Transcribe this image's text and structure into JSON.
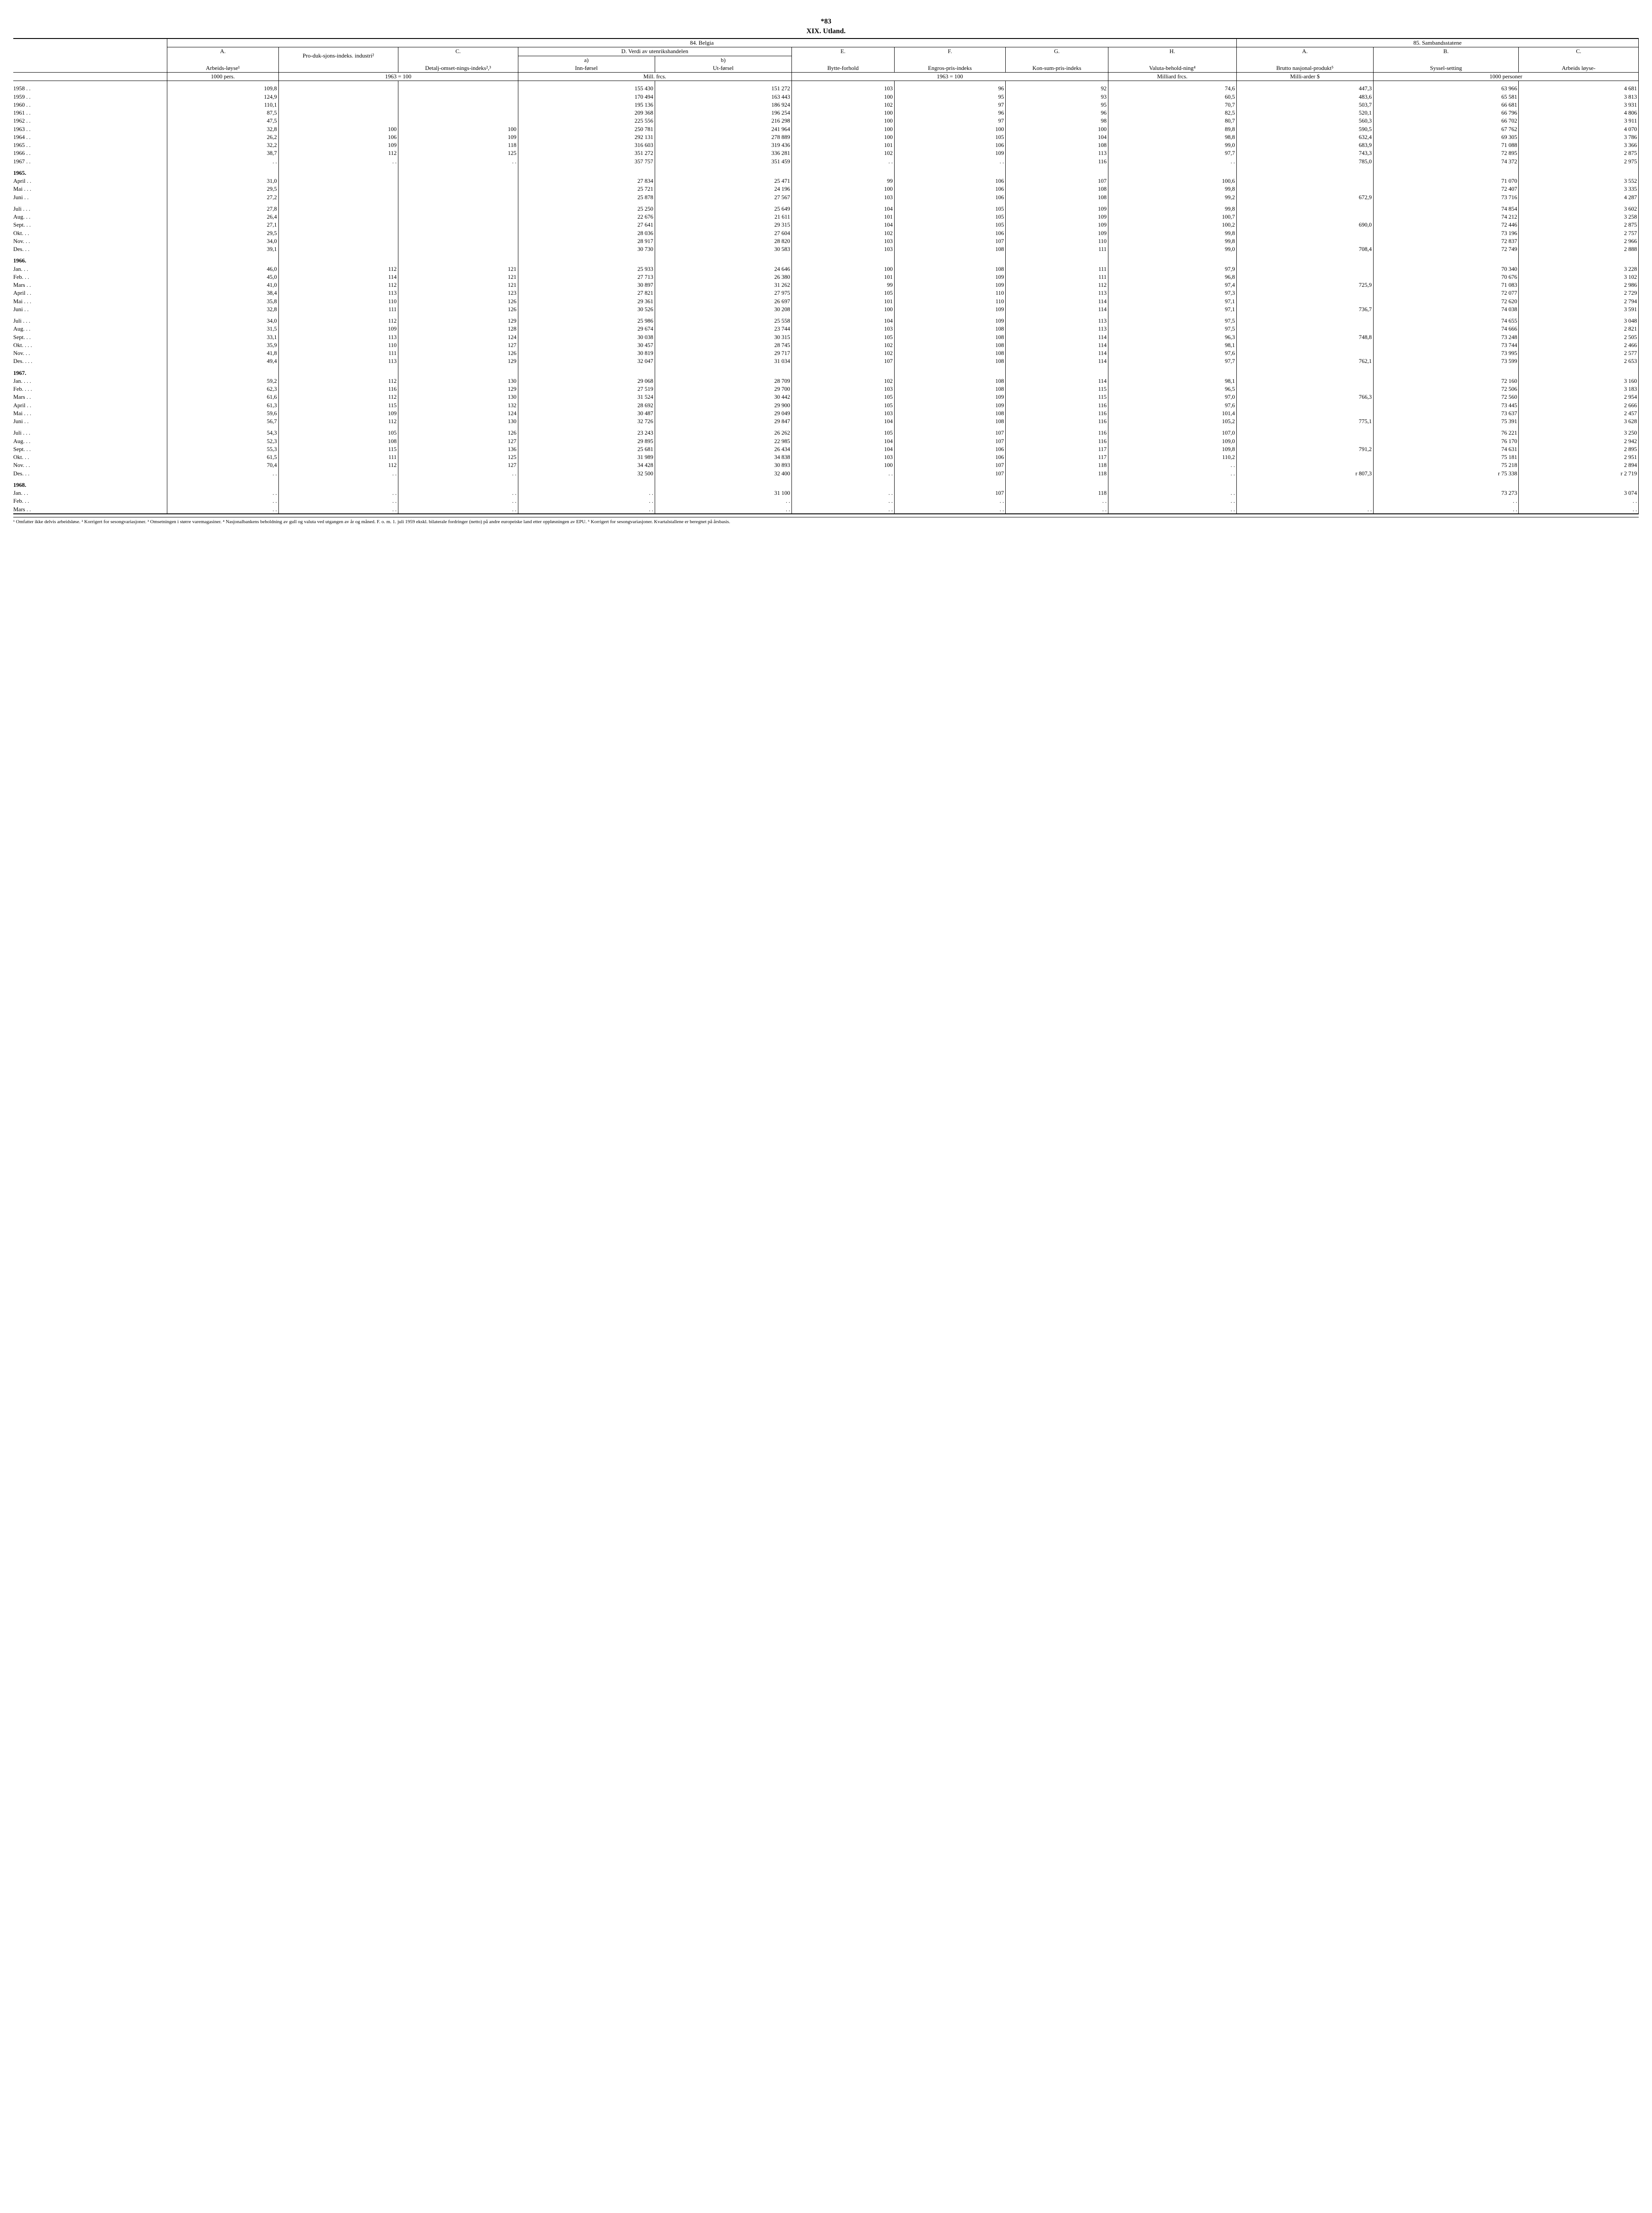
{
  "page_number": "*83",
  "chapter": "XIX.  Utland.",
  "section_belgia": "84.  Belgia",
  "section_samband": "85.  Sambandsstatene",
  "cols": {
    "A": "A.",
    "B": "B.",
    "C": "C.",
    "D": "D.  Verdi av utenrikshandelen",
    "E": "E.",
    "F": "F.",
    "G": "G.",
    "H": "H.",
    "A2": "A.",
    "B2": "B.",
    "C2": "C.",
    "a_sub": "a)",
    "b_sub": "b)"
  },
  "headers": {
    "arbeidsloyse": "Arbeids-løyse¹",
    "produksjon": "Pro-duk-sjons-indeks. industri²",
    "detalj": "Detalj-omset-nings-indeks²,³",
    "innforsel": "Inn-førsel",
    "utforsel": "Ut-førsel",
    "bytte": "Bytte-forhold",
    "engros": "Engros-pris-indeks",
    "konsum": "Kon-sum-pris-indeks",
    "valuta": "Valuta-behold-ning⁴",
    "brutto": "Brutto nasjonal-produkt⁵",
    "syssel": "Syssel-setting",
    "arbeidsloyse2": "Arbeids løyse-"
  },
  "units": {
    "pers": "1000 pers.",
    "idx63": "1963 = 100",
    "millfrcs": "Mill. frcs.",
    "idx63b": "1963 = 100",
    "millifrcs": "Milliard frcs.",
    "milliarder": "Milli-arder $",
    "tusenpers": "1000 personer"
  },
  "rows": [
    {
      "label": "1958  . .",
      "a": "109,8",
      "b": "",
      "c": "",
      "d1": "155 430",
      "d2": "151 272",
      "e": "103",
      "f": "96",
      "g": "92",
      "h": "74,6",
      "a2": "447,3",
      "b2": "63 966",
      "c2": "4 681"
    },
    {
      "label": "1959  . .",
      "a": "124,9",
      "b": "",
      "c": "",
      "d1": "170 494",
      "d2": "163 443",
      "e": "100",
      "f": "95",
      "g": "93",
      "h": "60,5",
      "a2": "483,6",
      "b2": "65 581",
      "c2": "3 813"
    },
    {
      "label": "1960  . .",
      "a": "110,1",
      "b": "",
      "c": "",
      "d1": "195 136",
      "d2": "186 924",
      "e": "102",
      "f": "97",
      "g": "95",
      "h": "70,7",
      "a2": "503,7",
      "b2": "66 681",
      "c2": "3 931"
    },
    {
      "label": "1961  . .",
      "a": "87,5",
      "b": "",
      "c": "",
      "d1": "209 368",
      "d2": "196 254",
      "e": "100",
      "f": "96",
      "g": "96",
      "h": "82,5",
      "a2": "520,1",
      "b2": "66 796",
      "c2": "4 806"
    },
    {
      "label": "1962  . .",
      "a": "47,5",
      "b": "",
      "c": "",
      "d1": "225 556",
      "d2": "216 298",
      "e": "100",
      "f": "97",
      "g": "98",
      "h": "80,7",
      "a2": "560,3",
      "b2": "66 702",
      "c2": "3 911"
    },
    {
      "label": "1963  . .",
      "a": "32,8",
      "b": "100",
      "c": "100",
      "d1": "250 781",
      "d2": "241 964",
      "e": "100",
      "f": "100",
      "g": "100",
      "h": "89,8",
      "a2": "590,5",
      "b2": "67 762",
      "c2": "4 070"
    },
    {
      "label": "1964  . .",
      "a": "26,2",
      "b": "106",
      "c": "109",
      "d1": "292 131",
      "d2": "278 889",
      "e": "100",
      "f": "105",
      "g": "104",
      "h": "98,8",
      "a2": "632,4",
      "b2": "69 305",
      "c2": "3 786"
    },
    {
      "label": "1965  . .",
      "a": "32,2",
      "b": "109",
      "c": "118",
      "d1": "316 603",
      "d2": "319 436",
      "e": "101",
      "f": "106",
      "g": "108",
      "h": "99,0",
      "a2": "683,9",
      "b2": "71 088",
      "c2": "3 366"
    },
    {
      "label": "1966  . .",
      "a": "38,7",
      "b": "112",
      "c": "125",
      "d1": "351 272",
      "d2": "336 281",
      "e": "102",
      "f": "109",
      "g": "113",
      "h": "97,7",
      "a2": "743,3",
      "b2": "72 895",
      "c2": "2 875"
    },
    {
      "label": "1967  . .",
      "a": ". .",
      "b": ". .",
      "c": ". .",
      "d1": "357 757",
      "d2": "351 459",
      "e": ". .",
      "f": ". .",
      "g": "116",
      "h": ". .",
      "a2": "785,0",
      "b2": "74 372",
      "c2": "2 975"
    }
  ],
  "g1965": [
    {
      "label": "April . .",
      "a": "31,0",
      "b": "",
      "c": "",
      "d1": "27 834",
      "d2": "25 471",
      "e": "99",
      "f": "106",
      "g": "107",
      "h": "100,6",
      "a2": "",
      "b2": "71 070",
      "c2": "3 552"
    },
    {
      "label": "Mai  . . .",
      "a": "29,5",
      "b": "",
      "c": "",
      "d1": "25 721",
      "d2": "24 196",
      "e": "100",
      "f": "106",
      "g": "108",
      "h": "99,8",
      "a2": "",
      "b2": "72 407",
      "c2": "3 335"
    },
    {
      "label": "Juni  . .",
      "a": "27,2",
      "b": "",
      "c": "",
      "d1": "25 878",
      "d2": "27 567",
      "e": "103",
      "f": "106",
      "g": "108",
      "h": "99,2",
      "a2": "672,9",
      "b2": "73 716",
      "c2": "4 287"
    },
    {
      "label": "Juli  . . .",
      "a": "27,8",
      "b": "",
      "c": "",
      "d1": "25 250",
      "d2": "25 649",
      "e": "104",
      "f": "105",
      "g": "109",
      "h": "99,8",
      "a2": "",
      "b2": "74 854",
      "c2": "3 602"
    },
    {
      "label": "Aug. . .",
      "a": "26,4",
      "b": "",
      "c": "",
      "d1": "22 676",
      "d2": "21 611",
      "e": "101",
      "f": "105",
      "g": "109",
      "h": "100,7",
      "a2": "",
      "b2": "74 212",
      "c2": "3 258"
    },
    {
      "label": "Sept. . .",
      "a": "27,1",
      "b": "",
      "c": "",
      "d1": "27 641",
      "d2": "29 315",
      "e": "104",
      "f": "105",
      "g": "109",
      "h": "100,2",
      "a2": "690,0",
      "b2": "72 446",
      "c2": "2 875"
    },
    {
      "label": "Okt.  . .",
      "a": "29,5",
      "b": "",
      "c": "",
      "d1": "28 036",
      "d2": "27 604",
      "e": "102",
      "f": "106",
      "g": "109",
      "h": "99,8",
      "a2": "",
      "b2": "73 196",
      "c2": "2 757"
    },
    {
      "label": "Nov. . .",
      "a": "34,0",
      "b": "",
      "c": "",
      "d1": "28 917",
      "d2": "28 820",
      "e": "103",
      "f": "107",
      "g": "110",
      "h": "99,8",
      "a2": "",
      "b2": "72 837",
      "c2": "2 966"
    },
    {
      "label": "Des.  . .",
      "a": "39,1",
      "b": "",
      "c": "",
      "d1": "30 730",
      "d2": "30 583",
      "e": "103",
      "f": "108",
      "g": "111",
      "h": "99,0",
      "a2": "708,4",
      "b2": "72 749",
      "c2": "2 888"
    }
  ],
  "g1966": [
    {
      "label": "Jan.  . .",
      "a": "46,0",
      "b": "112",
      "c": "121",
      "d1": "25 933",
      "d2": "24 646",
      "e": "100",
      "f": "108",
      "g": "111",
      "h": "97,9",
      "a2": "",
      "b2": "70 340",
      "c2": "3 228"
    },
    {
      "label": "Feb.  . .",
      "a": "45,0",
      "b": "114",
      "c": "121",
      "d1": "27 713",
      "d2": "26 380",
      "e": "101",
      "f": "109",
      "g": "111",
      "h": "96,8",
      "a2": "",
      "b2": "70 676",
      "c2": "3 102"
    },
    {
      "label": "Mars . .",
      "a": "41,0",
      "b": "112",
      "c": "121",
      "d1": "30 897",
      "d2": "31 262",
      "e": "99",
      "f": "109",
      "g": "112",
      "h": "97,4",
      "a2": "725,9",
      "b2": "71 083",
      "c2": "2 986"
    },
    {
      "label": "April . .",
      "a": "38,4",
      "b": "113",
      "c": "123",
      "d1": "27 821",
      "d2": "27 975",
      "e": "105",
      "f": "110",
      "g": "113",
      "h": "97,3",
      "a2": "",
      "b2": "72 077",
      "c2": "2 729"
    },
    {
      "label": "Mai  . . .",
      "a": "35,8",
      "b": "110",
      "c": "126",
      "d1": "29 361",
      "d2": "26 697",
      "e": "101",
      "f": "110",
      "g": "114",
      "h": "97,1",
      "a2": "",
      "b2": "72 620",
      "c2": "2 794"
    },
    {
      "label": "Juni  . .",
      "a": "32,8",
      "b": "111",
      "c": "126",
      "d1": "30 526",
      "d2": "30 208",
      "e": "100",
      "f": "109",
      "g": "114",
      "h": "97,1",
      "a2": "736,7",
      "b2": "74 038",
      "c2": "3 591"
    },
    {
      "label": "Juli  . . .",
      "a": "34,0",
      "b": "112",
      "c": "129",
      "d1": "25 986",
      "d2": "25 558",
      "e": "104",
      "f": "109",
      "g": "113",
      "h": "97,5",
      "a2": "",
      "b2": "74 655",
      "c2": "3 048"
    },
    {
      "label": "Aug. . .",
      "a": "31,5",
      "b": "109",
      "c": "128",
      "d1": "29 674",
      "d2": "23 744",
      "e": "103",
      "f": "108",
      "g": "113",
      "h": "97,5",
      "a2": "",
      "b2": "74 666",
      "c2": "2 821"
    },
    {
      "label": "Sept. . .",
      "a": "33,1",
      "b": "113",
      "c": "124",
      "d1": "30 038",
      "d2": "30 315",
      "e": "105",
      "f": "108",
      "g": "114",
      "h": "96,3",
      "a2": "748,8",
      "b2": "73 248",
      "c2": "2 505"
    },
    {
      "label": "Okt. . . .",
      "a": "35,9",
      "b": "110",
      "c": "127",
      "d1": "30 457",
      "d2": "28 745",
      "e": "102",
      "f": "108",
      "g": "114",
      "h": "98,1",
      "a2": "",
      "b2": "73 744",
      "c2": "2 466"
    },
    {
      "label": "Nov. . .",
      "a": "41,8",
      "b": "111",
      "c": "126",
      "d1": "30 819",
      "d2": "29 717",
      "e": "102",
      "f": "108",
      "g": "114",
      "h": "97,6",
      "a2": "",
      "b2": "73 995",
      "c2": "2 577"
    },
    {
      "label": "Des. . . .",
      "a": "49,4",
      "b": "113",
      "c": "129",
      "d1": "32 047",
      "d2": "31 034",
      "e": "107",
      "f": "108",
      "g": "114",
      "h": "97,7",
      "a2": "762,1",
      "b2": "73 599",
      "c2": "2 653"
    }
  ],
  "g1967": [
    {
      "label": "Jan. . . .",
      "a": "59,2",
      "b": "112",
      "c": "130",
      "d1": "29 068",
      "d2": "28 709",
      "e": "102",
      "f": "108",
      "g": "114",
      "h": "98,1",
      "a2": "",
      "b2": "72 160",
      "c2": "3 160"
    },
    {
      "label": "Feb. . . .",
      "a": "62,3",
      "b": "116",
      "c": "129",
      "d1": "27 519",
      "d2": "29 700",
      "e": "103",
      "f": "108",
      "g": "115",
      "h": "96,5",
      "a2": "",
      "b2": "72 506",
      "c2": "3 183"
    },
    {
      "label": "Mars . .",
      "a": "61,6",
      "b": "112",
      "c": "130",
      "d1": "31 524",
      "d2": "30 442",
      "e": "105",
      "f": "109",
      "g": "115",
      "h": "97,0",
      "a2": "766,3",
      "b2": "72 560",
      "c2": "2 954"
    },
    {
      "label": "April . .",
      "a": "61,3",
      "b": "115",
      "c": "132",
      "d1": "28 692",
      "d2": "29 900",
      "e": "105",
      "f": "109",
      "g": "116",
      "h": "97,6",
      "a2": "",
      "b2": "73 445",
      "c2": "2 666"
    },
    {
      "label": "Mai  . . .",
      "a": "59,6",
      "b": "109",
      "c": "124",
      "d1": "30 487",
      "d2": "29 049",
      "e": "103",
      "f": "108",
      "g": "116",
      "h": "101,4",
      "a2": "",
      "b2": "73 637",
      "c2": "2 457"
    },
    {
      "label": "Juni  . .",
      "a": "56,7",
      "b": "112",
      "c": "130",
      "d1": "32 726",
      "d2": "29 847",
      "e": "104",
      "f": "108",
      "g": "116",
      "h": "105,2",
      "a2": "775,1",
      "b2": "75 391",
      "c2": "3 628"
    },
    {
      "label": "Juli  . . .",
      "a": "54,3",
      "b": "105",
      "c": "126",
      "d1": "23 243",
      "d2": "26 262",
      "e": "105",
      "f": "107",
      "g": "116",
      "h": "107,0",
      "a2": "",
      "b2": "76 221",
      "c2": "3 250"
    },
    {
      "label": "Aug. . .",
      "a": "52,3",
      "b": "108",
      "c": "127",
      "d1": "29 895",
      "d2": "22 985",
      "e": "104",
      "f": "107",
      "g": "116",
      "h": "109,0",
      "a2": "",
      "b2": "76 170",
      "c2": "2 942"
    },
    {
      "label": "Sept. . .",
      "a": "55,3",
      "b": "115",
      "c": "136",
      "d1": "25 681",
      "d2": "26 434",
      "e": "104",
      "f": "106",
      "g": "117",
      "h": "109,8",
      "a2": "791,2",
      "b2": "74 631",
      "c2": "2 895"
    },
    {
      "label": "Okt.  . .",
      "a": "61,5",
      "b": "111",
      "c": "125",
      "d1": "31 989",
      "d2": "34 838",
      "e": "103",
      "f": "106",
      "g": "117",
      "h": "110,2",
      "a2": "",
      "b2": "75 181",
      "c2": "2 951"
    },
    {
      "label": "Nov. . .",
      "a": "70,4",
      "b": "112",
      "c": "127",
      "d1": "34 428",
      "d2": "30 893",
      "e": "100",
      "f": "107",
      "g": "118",
      "h": ". .",
      "a2": "",
      "b2": "75 218",
      "c2": "2 894"
    },
    {
      "label": "Des.  . .",
      "a": ". .",
      "b": ". .",
      "c": ". .",
      "d1": "32 500",
      "d2": "32 400",
      "e": ". .",
      "f": "107",
      "g": "118",
      "h": ". .",
      "a2": "r   807,3",
      "b2": "r  75 338",
      "c2": "r   2 719"
    }
  ],
  "g1968": [
    {
      "label": "Jan.  . .",
      "a": ". .",
      "b": ". .",
      "c": ". .",
      "d1": ". .",
      "d2": "31 100",
      "e": ". .",
      "f": "107",
      "g": "118",
      "h": ". .",
      "a2": "",
      "b2": "73 273",
      "c2": "3 074"
    },
    {
      "label": "Feb.  . .",
      "a": ". .",
      "b": ". .",
      "c": ". .",
      "d1": ". .",
      "d2": ". .",
      "e": ". .",
      "f": ". .",
      "g": ". .",
      "h": ". .",
      "a2": "",
      "b2": ". .",
      "c2": ". ."
    },
    {
      "label": "Mars . .",
      "a": ". .",
      "b": ". .",
      "c": ". .",
      "d1": ". .",
      "d2": ". .",
      "e": ". .",
      "f": ". .",
      "g": ". .",
      "h": ". .",
      "a2": ". .",
      "b2": ". .",
      "c2": ". ."
    }
  ],
  "year_labels": {
    "y1965": "1965.",
    "y1966": "1966.",
    "y1967": "1967.",
    "y1968": "1968."
  },
  "footnote": "¹ Omfatter ikke delvis arbeidsløse.  ² Korrigert for sesongvariasjoner.  ³ Omsetningen i større varemagasiner.  ⁴ Nasjonalbankens beholdning av gull og valuta ved utgangen av år og måned. F. o. m. 1. juli 1959 ekskl. bilaterale fordringer (netto) på andre europeiske land etter oppløsningen av EPU.  ⁵ Korrigert for sesongvariasjoner. Kvartalstallene er beregnet på årsbasis."
}
